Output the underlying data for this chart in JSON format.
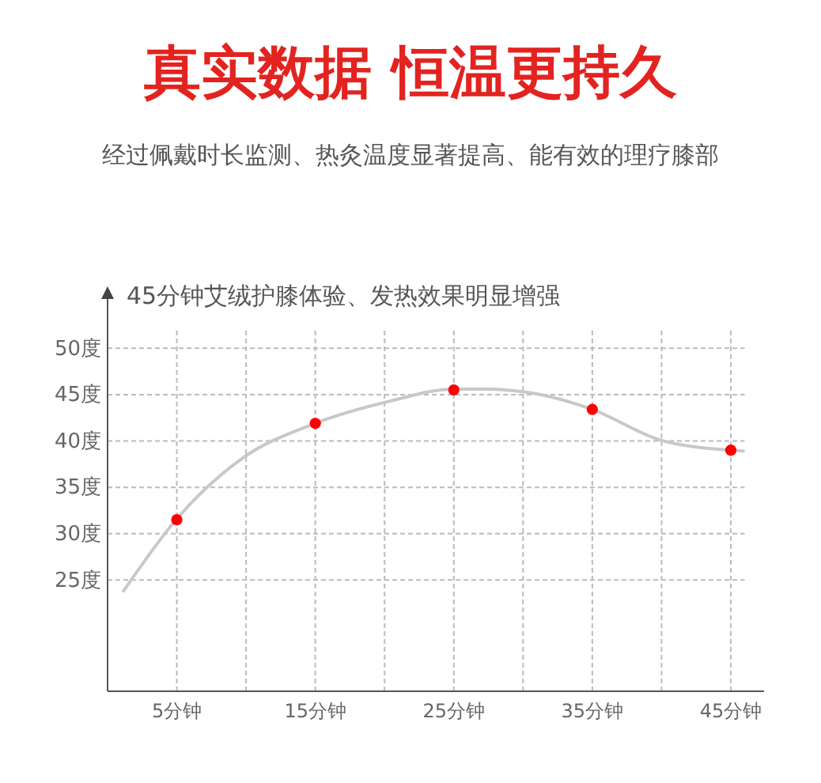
{
  "chart_data": {
    "type": "scatter",
    "title": "真实数据 恒温更持久",
    "subtitle": "经过佩戴时长监测、热灸温度显著提高、能有效的理疗膝部",
    "annotations": [
      "45分钟艾绒护膝体验、发热效果明显增强"
    ],
    "xlim": [
      0,
      47.4
    ],
    "ylim": [
      13,
      56
    ],
    "xticks": [
      {
        "value": 5,
        "label": "5分钟"
      },
      {
        "value": 10,
        "label": null
      },
      {
        "value": 15,
        "label": "15分钟"
      },
      {
        "value": 20,
        "label": null
      },
      {
        "value": 25,
        "label": "25分钟"
      },
      {
        "value": 30,
        "label": null
      },
      {
        "value": 35,
        "label": "35分钟"
      },
      {
        "value": 40,
        "label": null
      },
      {
        "value": 45,
        "label": "45分钟"
      }
    ],
    "yticks": [
      {
        "value": 25,
        "label": "25度"
      },
      {
        "value": 30,
        "label": "30度"
      },
      {
        "value": 35,
        "label": "35度"
      },
      {
        "value": 40,
        "label": "40度"
      },
      {
        "value": 45,
        "label": "45度"
      },
      {
        "value": 50,
        "label": "50度"
      }
    ],
    "grid": true,
    "series": [
      {
        "type": "line",
        "color": "#c8c8c8",
        "marker": "none",
        "x": [
          1.1,
          5,
          9.7,
          15,
          20.4,
          25,
          27.2,
          30.9,
          35,
          39.9,
          45,
          46
        ],
        "values": [
          23.7,
          31.6,
          38.1,
          41.9,
          44.3,
          45.6,
          45.6,
          45.1,
          43.4,
          40.1,
          39.0,
          38.9
        ]
      },
      {
        "color": "#ff0000",
        "marker": "circle",
        "x": [
          5,
          15,
          25,
          35,
          45
        ],
        "values": [
          31.5,
          41.9,
          45.5,
          43.4,
          39.0
        ]
      }
    ]
  }
}
